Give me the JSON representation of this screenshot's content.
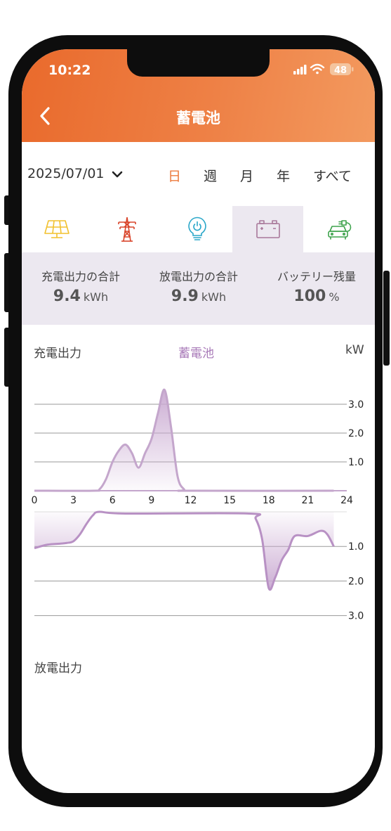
{
  "status_bar": {
    "time": "10:22",
    "battery": "48"
  },
  "header": {
    "title": "蓄電池"
  },
  "date_selector": {
    "value": "2025/07/01"
  },
  "periods": [
    {
      "label": "日",
      "active": true
    },
    {
      "label": "週",
      "active": false
    },
    {
      "label": "月",
      "active": false
    },
    {
      "label": "年",
      "active": false
    },
    {
      "label": "すべて",
      "active": false
    }
  ],
  "tabs": [
    {
      "icon": "solar-panel-icon",
      "active": false,
      "color": "#f2c12e"
    },
    {
      "icon": "power-tower-icon",
      "active": false,
      "color": "#d9452b"
    },
    {
      "icon": "lightbulb-icon",
      "active": false,
      "color": "#2aa7c9"
    },
    {
      "icon": "battery-icon",
      "active": true,
      "color": "#a8789a"
    },
    {
      "icon": "ev-charging-icon",
      "active": false,
      "color": "#3fa34d"
    }
  ],
  "summary": [
    {
      "label": "充電出力の合計",
      "value": "9.4",
      "unit": "kWh"
    },
    {
      "label": "放電出力の合計",
      "value": "9.9",
      "unit": "kWh"
    },
    {
      "label": "バッテリー残量",
      "value": "100",
      "unit": "%"
    }
  ],
  "chart_labels": {
    "left": "充電出力",
    "center": "蓄電池",
    "right": "kW",
    "bottom": "放電出力"
  },
  "colors": {
    "accent": "#ec7a3c",
    "chart": "#c4a6cc",
    "chart_line": "#b891c4"
  },
  "chart_data": {
    "type": "area",
    "xlabel": "",
    "ylabel": "kW",
    "xlim": [
      0,
      24
    ],
    "x_ticks": [
      0,
      3,
      6,
      9,
      12,
      15,
      18,
      21,
      24
    ],
    "charge_ticks": [
      1.0,
      2.0,
      3.0
    ],
    "discharge_ticks": [
      1.0,
      2.0,
      3.0
    ],
    "charge_ylim": [
      0,
      3.5
    ],
    "discharge_ylim": [
      0,
      3.5
    ],
    "series": [
      {
        "x": [
          0,
          4.5,
          5,
          5.5,
          6,
          6.5,
          7,
          7.5,
          8,
          8.5,
          9,
          9.5,
          10,
          10.5,
          11,
          11.5,
          12,
          23
        ],
        "values": [
          0,
          0,
          0.05,
          0.4,
          1.0,
          1.4,
          1.6,
          1.3,
          0.8,
          1.3,
          1.8,
          2.7,
          3.5,
          2.2,
          0.5,
          0.05,
          0,
          0
        ]
      },
      {
        "x": [
          0,
          1,
          2,
          2.5,
          3,
          3.5,
          4,
          4.5,
          5,
          7,
          16.5,
          17,
          17.5,
          18,
          18.5,
          19,
          19.5,
          20,
          21,
          22,
          22.5,
          23
        ],
        "values": [
          1.05,
          0.95,
          0.92,
          0.9,
          0.85,
          0.65,
          0.35,
          0.1,
          0,
          0.05,
          0.05,
          0.2,
          0.8,
          2.2,
          1.9,
          1.4,
          1.1,
          0.7,
          0.7,
          0.55,
          0.65,
          1.0
        ]
      }
    ]
  }
}
